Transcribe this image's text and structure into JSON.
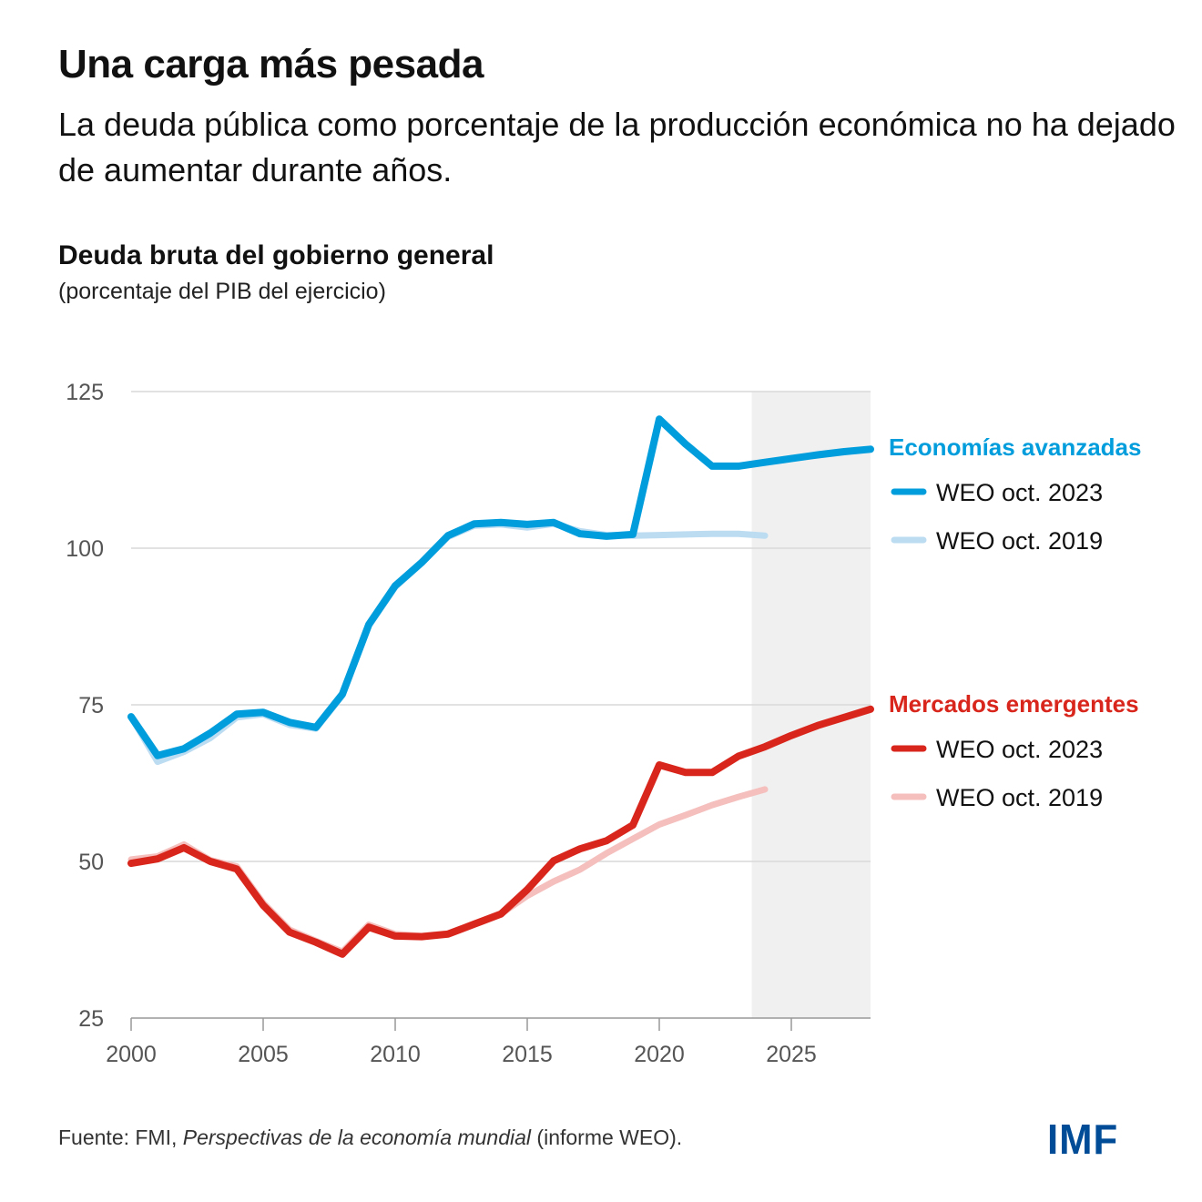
{
  "header": {
    "title": "Una carga más pesada",
    "subtitle": "La deuda pública como porcentaje de la producción económica no ha dejado de aumentar durante años."
  },
  "footer": {
    "source_prefix": "Fuente: FMI, ",
    "source_italic": "Perspectivas de la economía mundial",
    "source_suffix": " (informe WEO).",
    "logo": "IMF"
  },
  "colors": {
    "advanced_2023": "#009ddc",
    "advanced_2019": "#bcdcf2",
    "emerging_2023": "#d9261c",
    "emerging_2019": "#f4bfbd",
    "projection_shade": "#f0f0f0",
    "gridline": "#d9d9d9",
    "logo": "#004c97"
  },
  "chart_data": {
    "type": "line",
    "title": "Deuda bruta del gobierno general",
    "subtitle": "(porcentaje del PIB del ejercicio)",
    "xlabel": "",
    "ylabel": "",
    "xlim": [
      2000,
      2028
    ],
    "ylim": [
      25,
      125
    ],
    "yticks": [
      25,
      50,
      75,
      100,
      125
    ],
    "xticks": [
      2000,
      2005,
      2010,
      2015,
      2020,
      2025
    ],
    "grid": true,
    "projection_shaded_from": 2023.5,
    "groups": [
      {
        "name": "Economías avanzadas",
        "color_key": "advanced_2023",
        "series": [
          {
            "name": "WEO oct. 2023",
            "color_key": "advanced_2023",
            "x": [
              2000,
              2001,
              2002,
              2003,
              2004,
              2005,
              2006,
              2007,
              2008,
              2009,
              2010,
              2011,
              2012,
              2013,
              2014,
              2015,
              2016,
              2017,
              2018,
              2019,
              2020,
              2021,
              2022,
              2023,
              2024,
              2025,
              2026,
              2027,
              2028
            ],
            "values": [
              73.1,
              66.9,
              68.0,
              70.5,
              73.5,
              73.8,
              72.2,
              71.4,
              76.7,
              87.8,
              94.0,
              97.7,
              102.0,
              103.9,
              104.1,
              103.8,
              104.1,
              102.3,
              101.9,
              102.2,
              120.6,
              116.6,
              113.1,
              113.1,
              113.7,
              114.3,
              114.9,
              115.4,
              115.8
            ]
          },
          {
            "name": "WEO oct. 2019",
            "color_key": "advanced_2019",
            "x": [
              2000,
              2001,
              2002,
              2003,
              2004,
              2005,
              2006,
              2007,
              2008,
              2009,
              2010,
              2011,
              2012,
              2013,
              2014,
              2015,
              2016,
              2017,
              2018,
              2019,
              2020,
              2021,
              2022,
              2023,
              2024
            ],
            "values": [
              73.1,
              65.9,
              67.5,
              69.7,
              73.0,
              73.5,
              71.8,
              71.2,
              76.5,
              87.6,
              93.8,
              97.6,
              101.8,
              103.6,
              103.8,
              103.3,
              103.9,
              102.7,
              102.1,
              102.0,
              102.1,
              102.2,
              102.3,
              102.3,
              102.0
            ]
          }
        ]
      },
      {
        "name": "Mercados emergentes",
        "color_key": "emerging_2023",
        "series": [
          {
            "name": "WEO oct. 2023",
            "color_key": "emerging_2023",
            "x": [
              2000,
              2001,
              2002,
              2003,
              2004,
              2005,
              2006,
              2007,
              2008,
              2009,
              2010,
              2011,
              2012,
              2013,
              2014,
              2015,
              2016,
              2017,
              2018,
              2019,
              2020,
              2021,
              2022,
              2023,
              2024,
              2025,
              2026,
              2027,
              2028
            ],
            "values": [
              49.7,
              50.4,
              52.2,
              50.0,
              48.8,
              43.0,
              38.7,
              37.1,
              35.2,
              39.5,
              38.1,
              38.0,
              38.4,
              40.0,
              41.6,
              45.5,
              50.1,
              52.0,
              53.3,
              55.8,
              65.4,
              64.2,
              64.2,
              66.8,
              68.3,
              70.1,
              71.7,
              73.0,
              74.3
            ]
          },
          {
            "name": "WEO oct. 2019",
            "color_key": "emerging_2019",
            "x": [
              2000,
              2001,
              2002,
              2003,
              2004,
              2005,
              2006,
              2007,
              2008,
              2009,
              2010,
              2011,
              2012,
              2013,
              2014,
              2015,
              2016,
              2017,
              2018,
              2019,
              2020,
              2021,
              2022,
              2023,
              2024
            ],
            "values": [
              50.3,
              50.8,
              52.7,
              50.2,
              49.2,
              43.4,
              39.1,
              37.3,
              35.6,
              39.9,
              38.4,
              38.1,
              38.5,
              40.1,
              41.6,
              44.5,
              46.8,
              48.7,
              51.3,
              53.6,
              55.9,
              57.4,
              59.0,
              60.3,
              61.5
            ]
          }
        ]
      }
    ],
    "legend": [
      {
        "heading": "Economías avanzadas",
        "entries": [
          "WEO oct. 2023",
          "WEO oct. 2019"
        ]
      },
      {
        "heading": "Mercados emergentes",
        "entries": [
          "WEO oct. 2023",
          "WEO oct. 2019"
        ]
      }
    ],
    "legend_placement": "right"
  }
}
